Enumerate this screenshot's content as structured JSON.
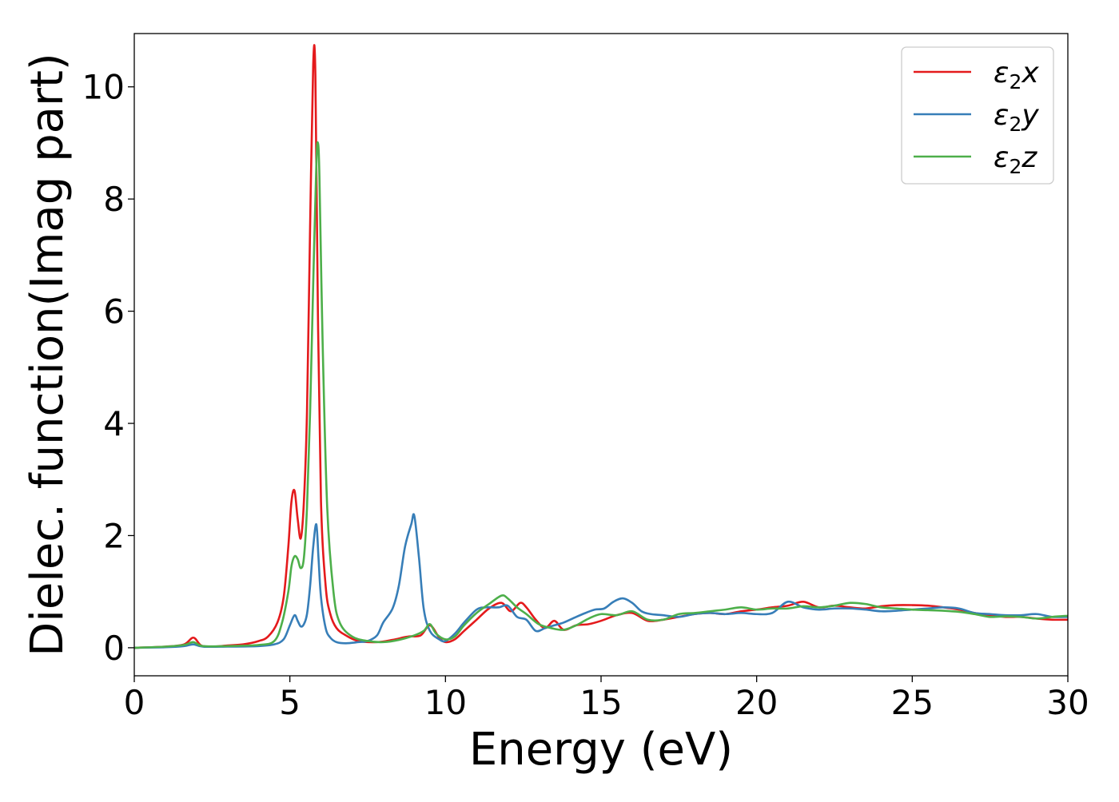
{
  "chart_data": {
    "type": "line",
    "title": "",
    "xlabel": "Energy (eV)",
    "ylabel": "Dielec. function(Imag part)",
    "xlim": [
      0,
      30
    ],
    "ylim": [
      -0.5,
      10.95
    ],
    "xticks": [
      0,
      5,
      10,
      15,
      20,
      25,
      30
    ],
    "xtick_labels": [
      "0",
      "5",
      "10",
      "15",
      "20",
      "25",
      "30"
    ],
    "yticks": [
      0,
      2,
      4,
      6,
      8,
      10
    ],
    "ytick_labels": [
      "0",
      "2",
      "4",
      "6",
      "8",
      "10"
    ],
    "grid": false,
    "legend_position": "top-right",
    "series": [
      {
        "name": "ε2x",
        "name_base": "ε",
        "name_sub": "2",
        "name_var": "x",
        "color": "#e41a1c",
        "x": [
          0,
          1,
          1.6,
          1.9,
          2.15,
          2.5,
          3,
          3.5,
          4,
          4.3,
          4.6,
          4.8,
          4.95,
          5.05,
          5.15,
          5.25,
          5.35,
          5.45,
          5.55,
          5.65,
          5.75,
          5.82,
          5.9,
          6.0,
          6.15,
          6.3,
          6.5,
          6.8,
          7.2,
          7.8,
          8.3,
          8.8,
          9.2,
          9.5,
          9.8,
          10.0,
          10.3,
          10.6,
          11.0,
          11.4,
          11.8,
          12.1,
          12.4,
          12.6,
          12.9,
          13.2,
          13.5,
          13.8,
          14.2,
          14.6,
          15.0,
          15.5,
          16.0,
          16.5,
          17.0,
          17.5,
          18.0,
          18.5,
          19.0,
          19.5,
          20.0,
          20.5,
          21.0,
          21.5,
          22.0,
          22.5,
          23.0,
          23.5,
          24.0,
          24.5,
          25.0,
          25.5,
          26.0,
          26.5,
          27.0,
          27.5,
          28.0,
          28.5,
          29.0,
          29.5,
          30.0
        ],
        "values": [
          0.0,
          0.02,
          0.06,
          0.18,
          0.04,
          0.02,
          0.04,
          0.06,
          0.12,
          0.2,
          0.45,
          0.9,
          1.8,
          2.6,
          2.8,
          2.3,
          1.95,
          2.6,
          4.2,
          7.5,
          10.4,
          10.2,
          6.0,
          2.6,
          1.1,
          0.6,
          0.35,
          0.22,
          0.12,
          0.1,
          0.14,
          0.2,
          0.22,
          0.4,
          0.18,
          0.1,
          0.15,
          0.3,
          0.5,
          0.7,
          0.8,
          0.65,
          0.8,
          0.72,
          0.5,
          0.35,
          0.48,
          0.32,
          0.4,
          0.42,
          0.48,
          0.58,
          0.62,
          0.48,
          0.5,
          0.55,
          0.6,
          0.62,
          0.6,
          0.65,
          0.68,
          0.72,
          0.75,
          0.82,
          0.72,
          0.75,
          0.72,
          0.7,
          0.74,
          0.76,
          0.76,
          0.75,
          0.72,
          0.68,
          0.62,
          0.58,
          0.55,
          0.55,
          0.52,
          0.5,
          0.5
        ]
      },
      {
        "name": "ε2y",
        "name_base": "ε",
        "name_sub": "2",
        "name_var": "y",
        "color": "#377eb8",
        "x": [
          0,
          1,
          1.6,
          1.9,
          2.2,
          3,
          4,
          4.5,
          4.8,
          5.0,
          5.15,
          5.25,
          5.35,
          5.45,
          5.55,
          5.65,
          5.75,
          5.85,
          5.92,
          6.0,
          6.15,
          6.3,
          6.5,
          6.8,
          7.2,
          7.5,
          7.8,
          8.0,
          8.3,
          8.5,
          8.7,
          8.9,
          9.0,
          9.15,
          9.3,
          9.5,
          9.8,
          10.0,
          10.3,
          10.6,
          11.0,
          11.3,
          11.7,
          12.0,
          12.3,
          12.6,
          12.9,
          13.2,
          13.5,
          13.8,
          14.2,
          14.5,
          14.8,
          15.1,
          15.4,
          15.7,
          16.0,
          16.3,
          16.6,
          17.0,
          17.5,
          18.0,
          18.5,
          19.0,
          19.5,
          20.0,
          20.5,
          21.0,
          21.5,
          22.0,
          22.5,
          23.0,
          23.5,
          24.0,
          24.5,
          25.0,
          25.5,
          26.0,
          26.5,
          27.0,
          27.5,
          28.0,
          28.5,
          29.0,
          29.5,
          30.0
        ],
        "values": [
          0.0,
          0.01,
          0.03,
          0.06,
          0.02,
          0.02,
          0.03,
          0.06,
          0.15,
          0.4,
          0.58,
          0.48,
          0.38,
          0.42,
          0.6,
          1.1,
          1.8,
          2.2,
          1.6,
          0.9,
          0.35,
          0.18,
          0.1,
          0.08,
          0.1,
          0.12,
          0.22,
          0.45,
          0.7,
          1.1,
          1.8,
          2.2,
          2.35,
          1.6,
          0.7,
          0.3,
          0.15,
          0.12,
          0.25,
          0.45,
          0.68,
          0.72,
          0.72,
          0.75,
          0.55,
          0.5,
          0.3,
          0.35,
          0.4,
          0.45,
          0.55,
          0.62,
          0.68,
          0.7,
          0.82,
          0.88,
          0.8,
          0.65,
          0.6,
          0.58,
          0.55,
          0.6,
          0.62,
          0.6,
          0.62,
          0.6,
          0.62,
          0.82,
          0.72,
          0.68,
          0.7,
          0.7,
          0.68,
          0.65,
          0.66,
          0.68,
          0.7,
          0.72,
          0.7,
          0.62,
          0.6,
          0.58,
          0.58,
          0.6,
          0.55,
          0.55
        ]
      },
      {
        "name": "ε2z",
        "name_base": "ε",
        "name_sub": "2",
        "name_var": "z",
        "color": "#4daf4a",
        "x": [
          0,
          1,
          1.6,
          1.9,
          2.2,
          3,
          4,
          4.5,
          4.75,
          4.95,
          5.05,
          5.15,
          5.25,
          5.35,
          5.45,
          5.55,
          5.65,
          5.75,
          5.85,
          5.9,
          5.95,
          6.05,
          6.2,
          6.4,
          6.6,
          7.0,
          7.5,
          8.0,
          8.5,
          9.0,
          9.3,
          9.5,
          9.7,
          10.0,
          10.3,
          10.6,
          11.0,
          11.4,
          11.8,
          12.0,
          12.3,
          12.6,
          13.0,
          13.4,
          13.8,
          14.2,
          14.6,
          15.0,
          15.5,
          16.0,
          16.5,
          17.0,
          17.5,
          18.0,
          18.5,
          19.0,
          19.5,
          20.0,
          20.5,
          21.0,
          21.5,
          22.0,
          22.5,
          23.0,
          23.5,
          24.0,
          24.5,
          25.0,
          25.5,
          26.0,
          26.5,
          27.0,
          27.5,
          28.0,
          28.5,
          29.0,
          29.5,
          30.0
        ],
        "values": [
          0.0,
          0.02,
          0.05,
          0.1,
          0.03,
          0.03,
          0.05,
          0.12,
          0.45,
          1.0,
          1.45,
          1.63,
          1.58,
          1.42,
          1.6,
          2.5,
          4.2,
          6.5,
          8.6,
          9.0,
          8.4,
          5.5,
          2.5,
          1.0,
          0.45,
          0.2,
          0.12,
          0.1,
          0.14,
          0.22,
          0.3,
          0.42,
          0.25,
          0.15,
          0.2,
          0.4,
          0.62,
          0.78,
          0.93,
          0.88,
          0.72,
          0.6,
          0.42,
          0.35,
          0.32,
          0.4,
          0.52,
          0.6,
          0.58,
          0.65,
          0.5,
          0.5,
          0.6,
          0.62,
          0.65,
          0.68,
          0.72,
          0.68,
          0.7,
          0.7,
          0.74,
          0.72,
          0.75,
          0.8,
          0.78,
          0.72,
          0.7,
          0.68,
          0.67,
          0.66,
          0.64,
          0.6,
          0.55,
          0.56,
          0.55,
          0.52,
          0.55,
          0.57
        ]
      }
    ]
  }
}
